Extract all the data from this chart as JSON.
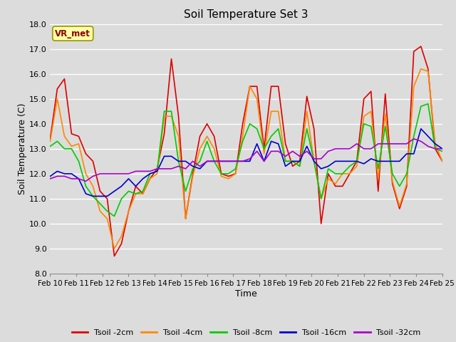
{
  "title": "Soil Temperature Set 3",
  "xlabel": "Time",
  "ylabel": "Soil Temperature (C)",
  "ylim": [
    8.0,
    18.0
  ],
  "yticks": [
    8.0,
    9.0,
    10.0,
    11.0,
    12.0,
    13.0,
    14.0,
    15.0,
    16.0,
    17.0,
    18.0
  ],
  "bg_color": "#dcdcdc",
  "annotation_label": "VR_met",
  "annotation_box_color": "#ffffaa",
  "annotation_text_color": "#8b0000",
  "series_colors": [
    "#dd0000",
    "#ff8800",
    "#00cc00",
    "#0000cc",
    "#aa00cc"
  ],
  "series_names": [
    "Tsoil -2cm",
    "Tsoil -4cm",
    "Tsoil -8cm",
    "Tsoil -16cm",
    "Tsoil -32cm"
  ],
  "x_labels": [
    "Feb 10",
    "Feb 11",
    "Feb 12",
    "Feb 13",
    "Feb 14",
    "Feb 15",
    "Feb 16",
    "Feb 17",
    "Feb 18",
    "Feb 19",
    "Feb 20",
    "Feb 21",
    "Feb 22",
    "Feb 23",
    "Feb 24",
    "Feb 25"
  ],
  "tsoil_2cm": [
    13.4,
    15.4,
    15.8,
    13.6,
    13.5,
    12.8,
    12.5,
    11.3,
    11.0,
    8.7,
    9.2,
    10.5,
    11.5,
    11.2,
    11.8,
    12.2,
    13.6,
    16.6,
    14.3,
    10.2,
    12.0,
    13.5,
    14.0,
    13.5,
    12.0,
    11.9,
    12.0,
    14.0,
    15.5,
    15.5,
    13.0,
    15.5,
    15.5,
    13.2,
    12.3,
    12.5,
    15.1,
    13.8,
    10.0,
    12.0,
    11.5,
    11.5,
    12.0,
    12.5,
    15.0,
    15.3,
    11.3,
    15.2,
    11.6,
    10.6,
    11.5,
    16.9,
    17.1,
    16.2,
    13.0,
    12.5
  ],
  "tsoil_4cm": [
    13.3,
    15.0,
    13.5,
    13.1,
    13.2,
    12.0,
    11.5,
    10.5,
    10.2,
    9.0,
    9.5,
    10.5,
    11.2,
    11.2,
    11.8,
    12.0,
    14.3,
    14.3,
    13.5,
    10.2,
    11.9,
    13.0,
    13.5,
    13.0,
    11.9,
    11.8,
    12.0,
    13.5,
    15.5,
    15.0,
    12.8,
    14.5,
    14.5,
    12.5,
    12.5,
    12.3,
    14.5,
    12.5,
    11.0,
    11.8,
    11.6,
    12.0,
    12.0,
    12.3,
    14.3,
    14.5,
    11.8,
    14.4,
    11.7,
    10.7,
    11.6,
    15.5,
    16.2,
    16.1,
    13.2,
    12.5
  ],
  "tsoil_8cm": [
    13.1,
    13.3,
    13.0,
    13.0,
    12.5,
    11.5,
    11.1,
    10.8,
    10.5,
    10.3,
    11.0,
    11.3,
    11.2,
    11.3,
    12.0,
    12.1,
    14.5,
    14.5,
    12.5,
    11.3,
    12.2,
    12.5,
    13.3,
    12.5,
    12.0,
    12.0,
    12.2,
    13.3,
    14.0,
    13.8,
    13.0,
    13.5,
    13.8,
    12.5,
    12.5,
    12.3,
    13.8,
    12.5,
    11.0,
    12.2,
    12.0,
    12.0,
    12.3,
    12.5,
    14.0,
    13.9,
    12.2,
    13.9,
    12.0,
    11.5,
    12.0,
    13.5,
    14.7,
    14.8,
    13.0,
    12.9
  ],
  "tsoil_16cm": [
    11.9,
    12.1,
    12.0,
    12.0,
    11.8,
    11.2,
    11.1,
    11.1,
    11.1,
    11.3,
    11.5,
    11.8,
    11.5,
    11.8,
    12.0,
    12.1,
    12.7,
    12.7,
    12.5,
    12.5,
    12.3,
    12.2,
    12.5,
    12.5,
    12.5,
    12.5,
    12.5,
    12.5,
    12.5,
    13.2,
    12.5,
    13.3,
    13.2,
    12.3,
    12.5,
    12.5,
    13.1,
    12.5,
    12.2,
    12.3,
    12.5,
    12.5,
    12.5,
    12.5,
    12.4,
    12.6,
    12.5,
    12.5,
    12.5,
    12.5,
    12.8,
    12.8,
    13.8,
    13.5,
    13.2,
    13.0
  ],
  "tsoil_32cm": [
    11.8,
    11.9,
    11.9,
    11.8,
    11.8,
    11.7,
    11.9,
    12.0,
    12.0,
    12.0,
    12.0,
    12.0,
    12.1,
    12.1,
    12.1,
    12.2,
    12.2,
    12.2,
    12.3,
    12.2,
    12.5,
    12.3,
    12.5,
    12.5,
    12.5,
    12.5,
    12.5,
    12.5,
    12.6,
    12.9,
    12.5,
    12.9,
    12.9,
    12.7,
    12.9,
    12.7,
    12.9,
    12.6,
    12.6,
    12.9,
    13.0,
    13.0,
    13.0,
    13.2,
    13.0,
    13.0,
    13.2,
    13.2,
    13.2,
    13.2,
    13.2,
    13.4,
    13.3,
    13.1,
    13.0,
    13.0
  ]
}
